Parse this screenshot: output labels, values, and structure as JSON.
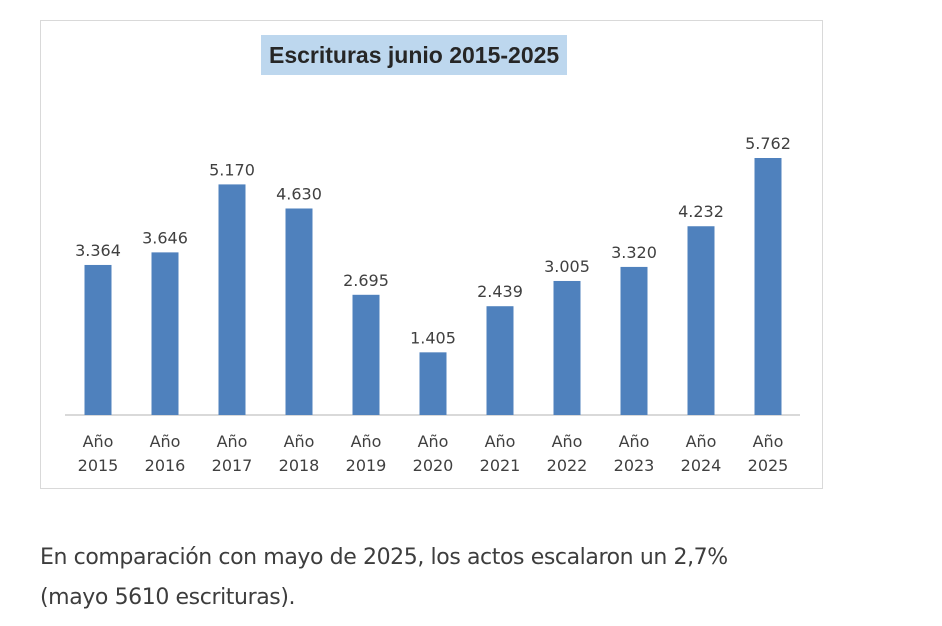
{
  "chart_data": {
    "type": "bar",
    "title": "Escrituras junio 2015-2025",
    "categories": [
      [
        "Año",
        "2015"
      ],
      [
        "Año",
        "2016"
      ],
      [
        "Año",
        "2017"
      ],
      [
        "Año",
        "2018"
      ],
      [
        "Año",
        "2019"
      ],
      [
        "Año",
        "2020"
      ],
      [
        "Año",
        "2021"
      ],
      [
        "Año",
        "2022"
      ],
      [
        "Año",
        "2023"
      ],
      [
        "Año",
        "2024"
      ],
      [
        "Año",
        "2025"
      ]
    ],
    "values": [
      3364,
      3646,
      5170,
      4630,
      2695,
      1405,
      2439,
      3005,
      3320,
      4232,
      5762
    ],
    "value_labels": [
      "3.364",
      "3.646",
      "5.170",
      "4.630",
      "2.695",
      "1.405",
      "2.439",
      "3.005",
      "3.320",
      "4.232",
      "5.762"
    ],
    "xlabel": "",
    "ylabel": "",
    "ylim": [
      0,
      7000
    ],
    "grid": false,
    "bar_color": "#4f81bd"
  },
  "caption": {
    "line1": "En comparación con mayo de 2025, los actos escalaron un 2,7%",
    "line2": "(mayo 5610 escrituras)."
  }
}
